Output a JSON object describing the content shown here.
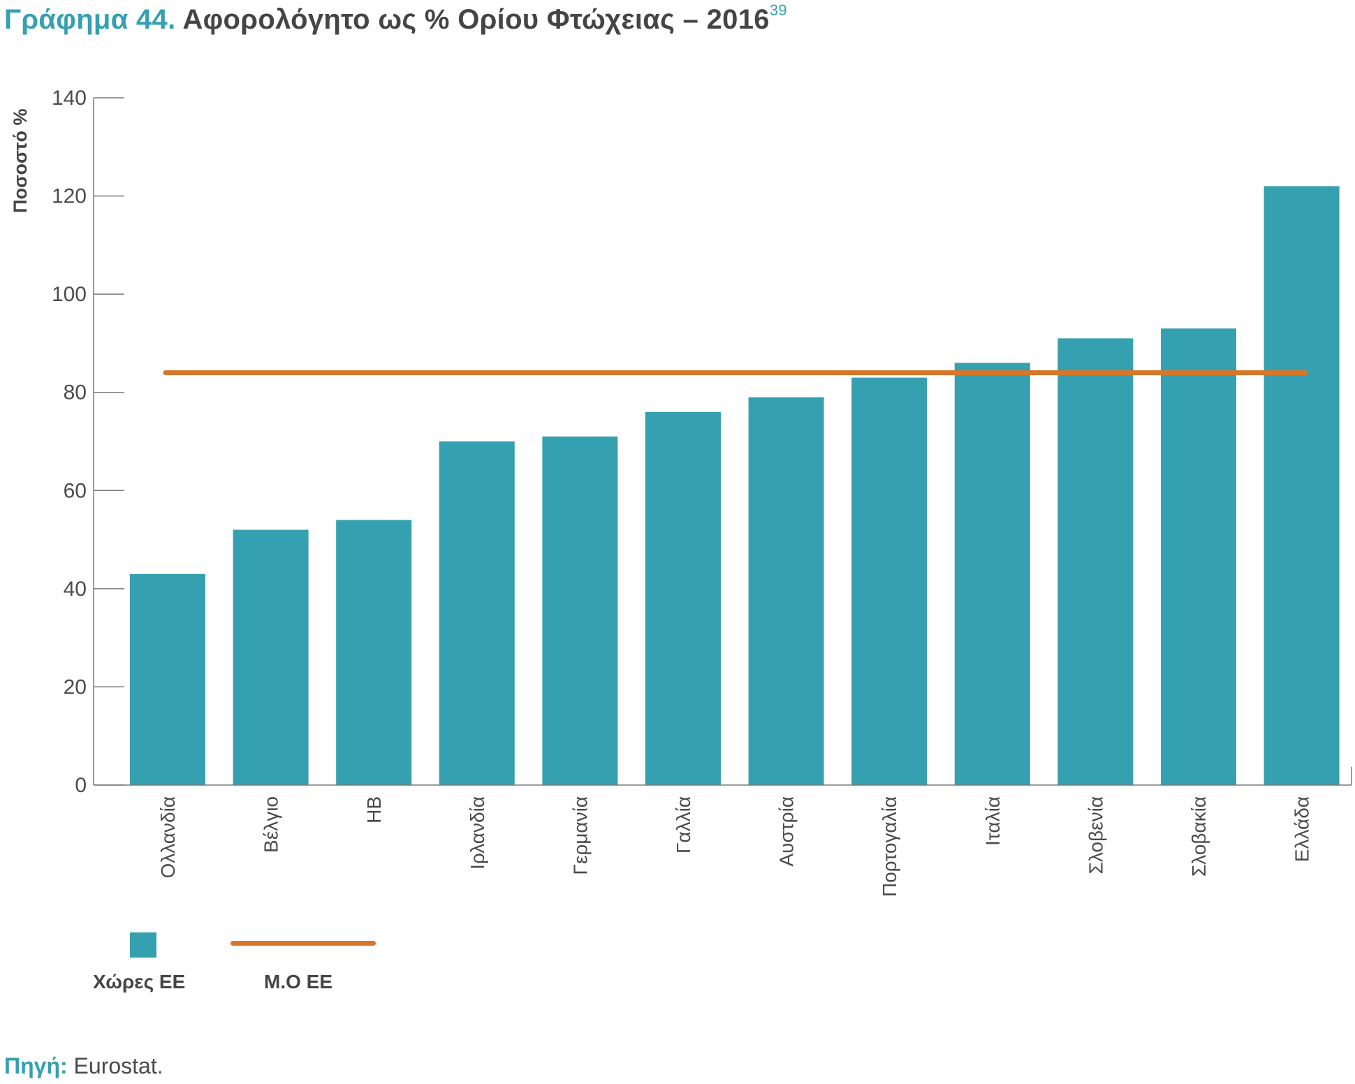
{
  "title": {
    "label": "Γράφημα 44.",
    "text": "Αφορολόγητο ως % Ορίου Φτώχειας – 2016",
    "footnote": "39"
  },
  "colors": {
    "bar": "#35a0b0",
    "average_line": "#d6772b",
    "axis": "#7a7a7a"
  },
  "legend": {
    "bars_label": "Χώρες ΕΕ",
    "line_label": "Μ.Ο ΕΕ"
  },
  "source": {
    "label": "Πηγή:",
    "text": "Eurostat."
  },
  "chart_data": {
    "type": "bar",
    "title": "Αφορολόγητο ως % Ορίου Φτώχειας – 2016",
    "ylabel": "Ποσοστό %",
    "xlabel": "",
    "ylim": [
      0,
      140
    ],
    "yticks": [
      0,
      20,
      40,
      60,
      80,
      100,
      120,
      140
    ],
    "grid": false,
    "legend_position": "bottom-left",
    "categories": [
      "Ολλανδία",
      "Βέλγιο",
      "ΗΒ",
      "Ιρλανδία",
      "Γερμανία",
      "Γαλλία",
      "Αυστρία",
      "Πορτογαλία",
      "Ιταλία",
      "Σλοβενία",
      "Σλοβακία",
      "Ελλάδα"
    ],
    "series": [
      {
        "name": "Χώρες ΕΕ",
        "type": "bar",
        "values": [
          43,
          52,
          54,
          70,
          71,
          76,
          79,
          83,
          86,
          91,
          93,
          122
        ]
      },
      {
        "name": "Μ.Ο ΕΕ",
        "type": "line",
        "value": 84
      }
    ]
  }
}
